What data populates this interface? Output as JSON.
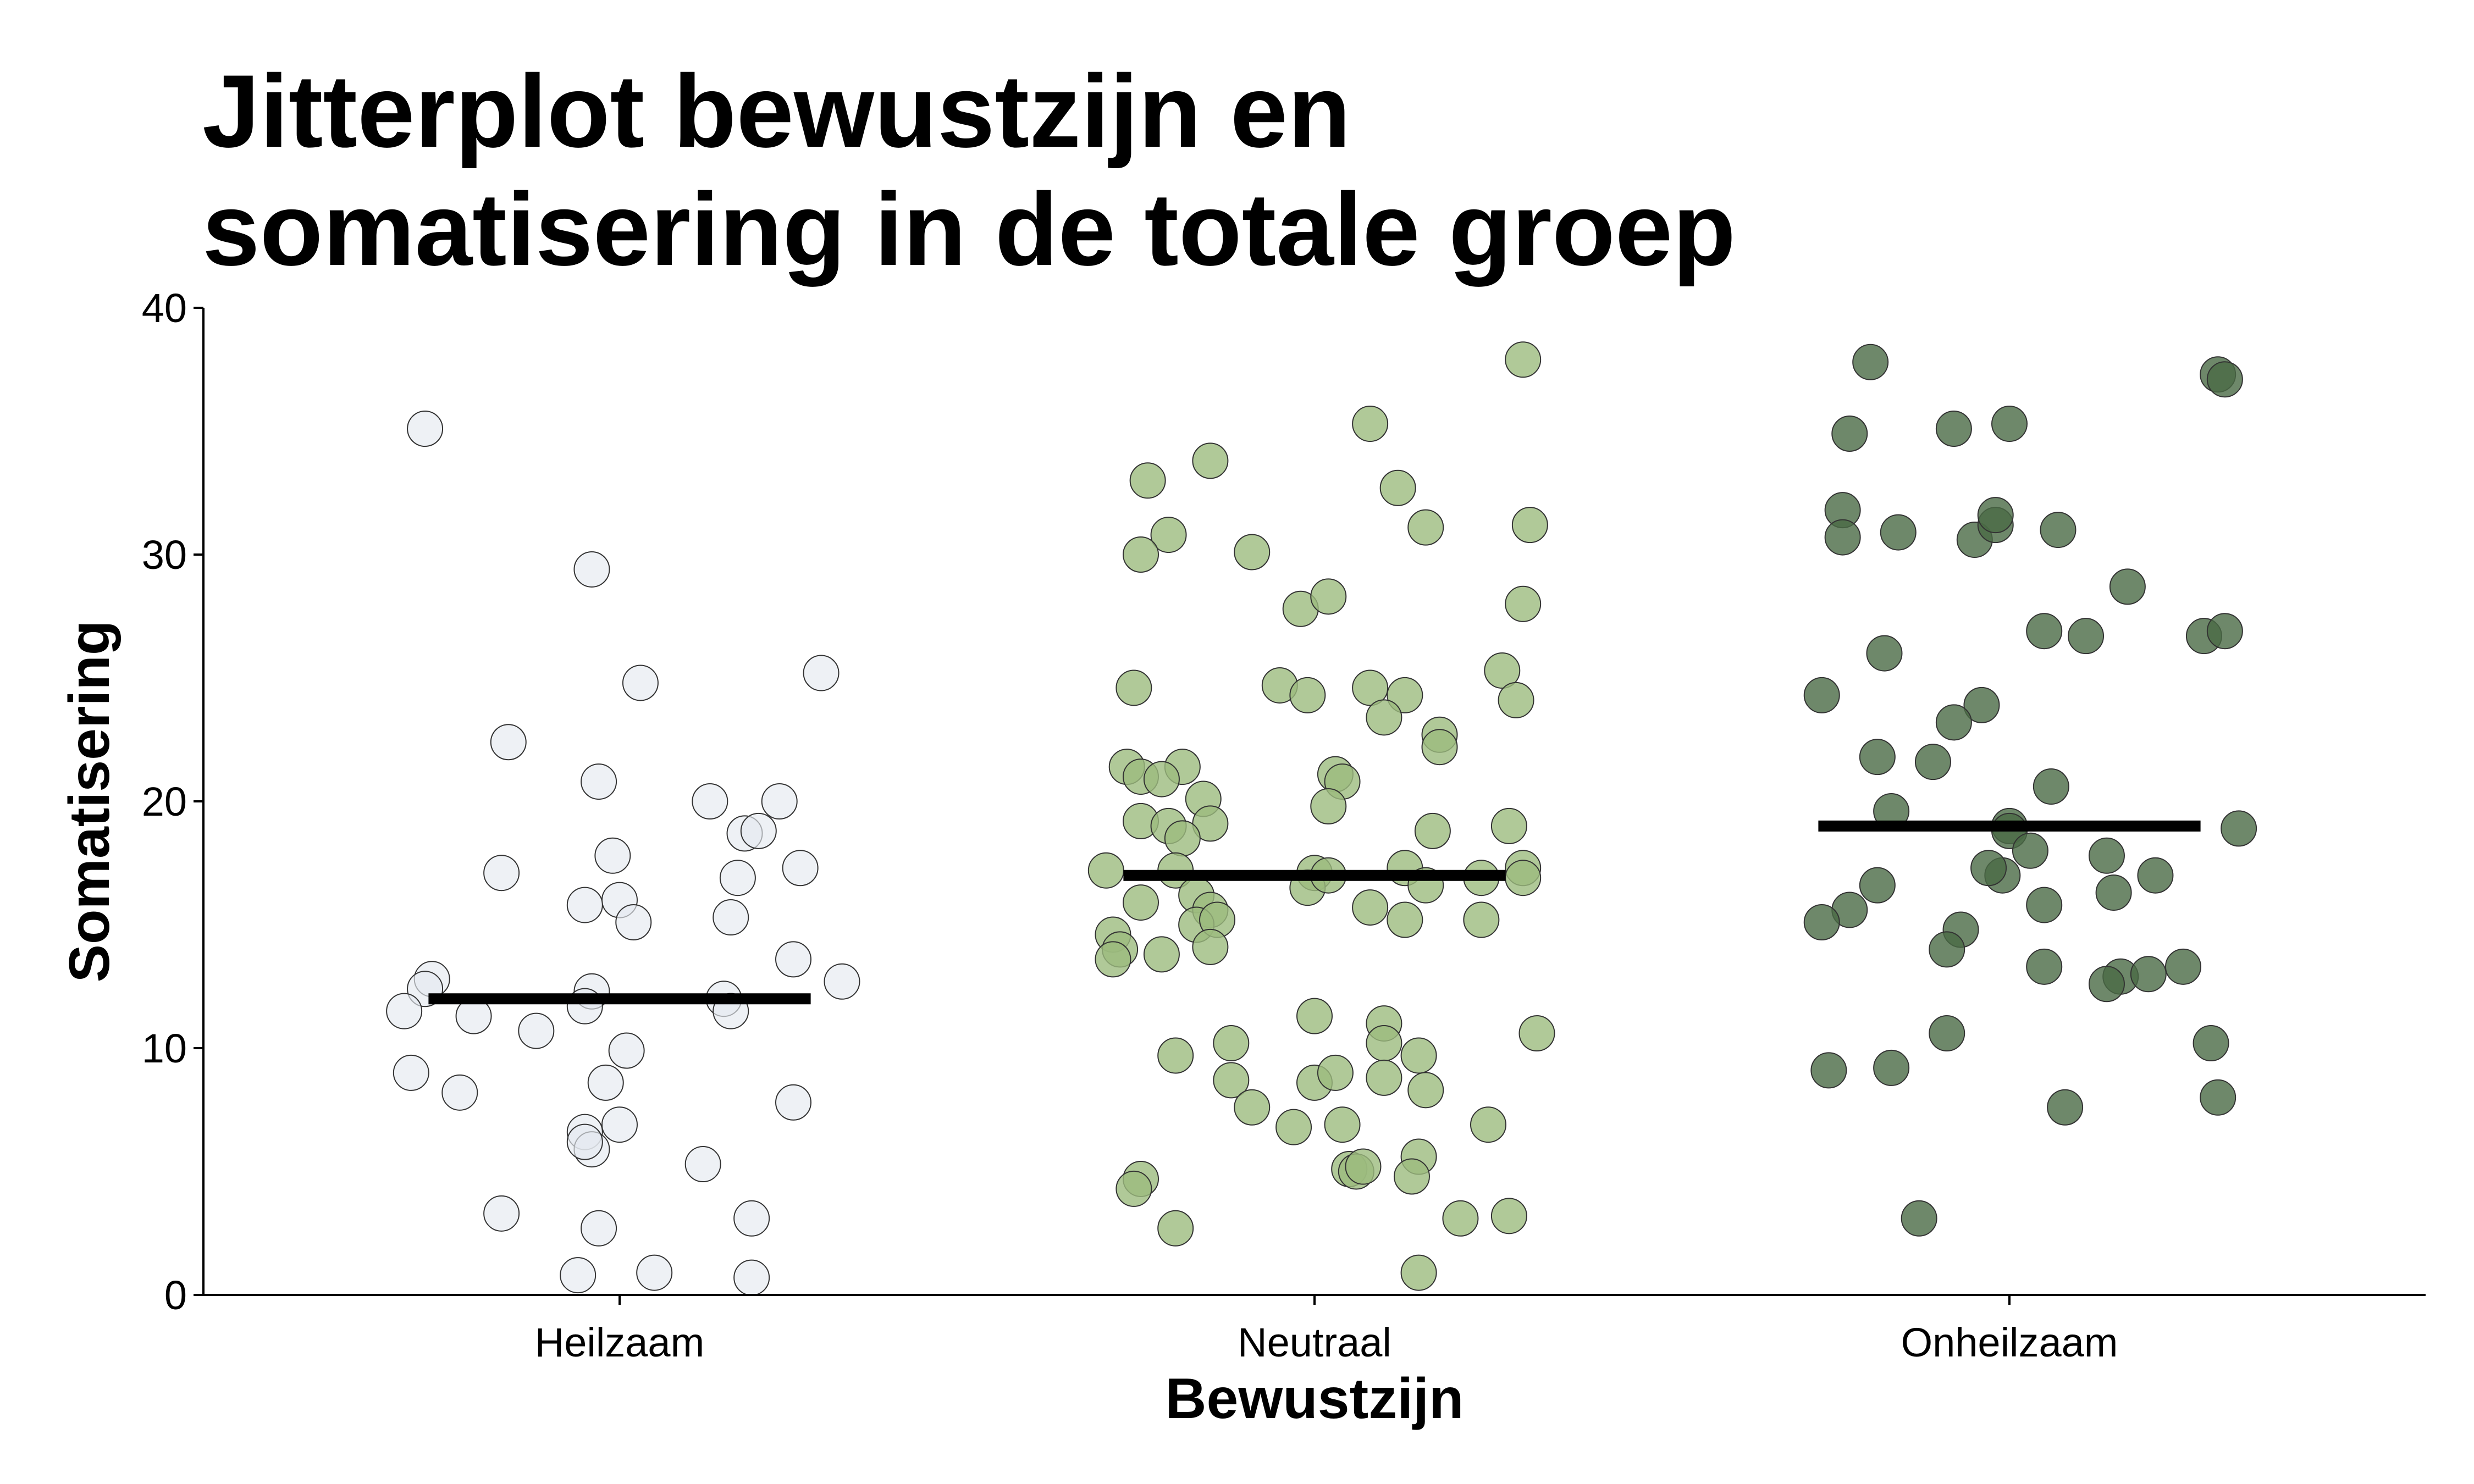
{
  "chart_data": {
    "type": "scatter",
    "title_lines": [
      "Jitterplot bewustzijn en",
      "somatisering in de totale groep"
    ],
    "xlabel": "Bewustzijn",
    "ylabel": "Somatisering",
    "categories": [
      "Heilzaam",
      "Neutraal",
      "Onheilzaam"
    ],
    "ylim": [
      0,
      40
    ],
    "yticks": [
      "0",
      "10",
      "20",
      "30",
      "40"
    ],
    "grid": false,
    "legend": "none",
    "series": [
      {
        "category": "Heilzaam",
        "color": "#e5e9f0",
        "mean": 12,
        "points": [
          [
            -0.28,
            35.1
          ],
          [
            -0.04,
            29.4
          ],
          [
            0.03,
            24.8
          ],
          [
            0.29,
            25.2
          ],
          [
            -0.16,
            22.4
          ],
          [
            -0.03,
            20.8
          ],
          [
            0.13,
            20.0
          ],
          [
            0.23,
            20.0
          ],
          [
            0.18,
            18.7
          ],
          [
            0.2,
            18.8
          ],
          [
            -0.17,
            17.1
          ],
          [
            -0.01,
            17.8
          ],
          [
            0.26,
            17.3
          ],
          [
            0.17,
            16.9
          ],
          [
            0.0,
            16.0
          ],
          [
            -0.05,
            15.8
          ],
          [
            0.02,
            15.1
          ],
          [
            0.16,
            15.3
          ],
          [
            0.25,
            13.6
          ],
          [
            -0.27,
            12.8
          ],
          [
            -0.28,
            12.4
          ],
          [
            0.32,
            12.7
          ],
          [
            -0.31,
            11.5
          ],
          [
            -0.21,
            11.3
          ],
          [
            -0.04,
            12.3
          ],
          [
            -0.05,
            11.7
          ],
          [
            0.15,
            12.0
          ],
          [
            0.16,
            11.5
          ],
          [
            -0.12,
            10.7
          ],
          [
            0.01,
            9.9
          ],
          [
            -0.3,
            9.0
          ],
          [
            -0.23,
            8.2
          ],
          [
            -0.02,
            8.6
          ],
          [
            0.25,
            7.8
          ],
          [
            -0.05,
            6.6
          ],
          [
            0.0,
            6.9
          ],
          [
            -0.04,
            5.9
          ],
          [
            -0.05,
            6.2
          ],
          [
            0.12,
            5.3
          ],
          [
            -0.17,
            3.3
          ],
          [
            -0.03,
            2.7
          ],
          [
            0.19,
            3.1
          ],
          [
            -0.06,
            0.8
          ],
          [
            0.05,
            0.9
          ],
          [
            0.19,
            0.7
          ]
        ]
      },
      {
        "category": "Neutraal",
        "color": "#9cbc7e",
        "mean": 17,
        "points": [
          [
            0.3,
            37.9
          ],
          [
            0.08,
            35.3
          ],
          [
            -0.15,
            33.8
          ],
          [
            -0.24,
            33.0
          ],
          [
            0.12,
            32.7
          ],
          [
            0.16,
            31.1
          ],
          [
            0.31,
            31.2
          ],
          [
            -0.21,
            30.8
          ],
          [
            -0.25,
            30.0
          ],
          [
            -0.09,
            30.1
          ],
          [
            -0.02,
            27.8
          ],
          [
            0.02,
            28.3
          ],
          [
            0.3,
            28.0
          ],
          [
            -0.05,
            24.7
          ],
          [
            -0.01,
            24.3
          ],
          [
            -0.26,
            24.6
          ],
          [
            0.08,
            24.6
          ],
          [
            0.13,
            24.3
          ],
          [
            0.27,
            25.3
          ],
          [
            0.29,
            24.1
          ],
          [
            0.1,
            23.4
          ],
          [
            0.18,
            22.7
          ],
          [
            0.18,
            22.2
          ],
          [
            -0.27,
            21.4
          ],
          [
            -0.25,
            21.0
          ],
          [
            -0.19,
            21.4
          ],
          [
            -0.22,
            20.9
          ],
          [
            0.03,
            21.1
          ],
          [
            0.04,
            20.8
          ],
          [
            -0.16,
            20.1
          ],
          [
            0.02,
            19.8
          ],
          [
            -0.25,
            19.2
          ],
          [
            -0.21,
            19.0
          ],
          [
            -0.15,
            19.1
          ],
          [
            0.17,
            18.8
          ],
          [
            0.28,
            19.0
          ],
          [
            -0.19,
            18.5
          ],
          [
            -0.3,
            17.2
          ],
          [
            -0.2,
            17.2
          ],
          [
            0.0,
            17.1
          ],
          [
            0.13,
            17.3
          ],
          [
            0.24,
            16.9
          ],
          [
            0.3,
            17.3
          ],
          [
            0.3,
            16.9
          ],
          [
            -0.01,
            16.5
          ],
          [
            -0.17,
            16.2
          ],
          [
            0.16,
            16.6
          ],
          [
            0.02,
            17.0
          ],
          [
            -0.25,
            15.9
          ],
          [
            -0.15,
            15.6
          ],
          [
            0.08,
            15.7
          ],
          [
            -0.17,
            15.0
          ],
          [
            -0.14,
            15.2
          ],
          [
            0.13,
            15.2
          ],
          [
            0.24,
            15.2
          ],
          [
            -0.29,
            14.6
          ],
          [
            -0.28,
            14.0
          ],
          [
            -0.29,
            13.6
          ],
          [
            -0.22,
            13.8
          ],
          [
            -0.15,
            14.1
          ],
          [
            0.0,
            11.3
          ],
          [
            0.1,
            11.0
          ],
          [
            0.15,
            9.7
          ],
          [
            0.1,
            10.2
          ],
          [
            0.32,
            10.6
          ],
          [
            -0.2,
            9.7
          ],
          [
            -0.12,
            10.2
          ],
          [
            -0.12,
            8.7
          ],
          [
            0.0,
            8.6
          ],
          [
            0.03,
            9.0
          ],
          [
            0.1,
            8.8
          ],
          [
            0.16,
            8.3
          ],
          [
            -0.09,
            7.6
          ],
          [
            -0.03,
            6.8
          ],
          [
            0.04,
            6.9
          ],
          [
            0.25,
            6.9
          ],
          [
            0.05,
            5.1
          ],
          [
            0.06,
            5.0
          ],
          [
            0.07,
            5.2
          ],
          [
            0.15,
            5.6
          ],
          [
            0.14,
            4.8
          ],
          [
            -0.25,
            4.7
          ],
          [
            -0.26,
            4.3
          ],
          [
            -0.2,
            2.7
          ],
          [
            0.21,
            3.1
          ],
          [
            0.28,
            3.2
          ],
          [
            0.15,
            0.9
          ]
        ]
      },
      {
        "category": "Onheilzaam",
        "color": "#4a6a45",
        "mean": 19,
        "points": [
          [
            -0.2,
            37.8
          ],
          [
            0.3,
            37.3
          ],
          [
            0.31,
            37.1
          ],
          [
            -0.23,
            34.9
          ],
          [
            -0.08,
            35.1
          ],
          [
            0.0,
            35.3
          ],
          [
            -0.24,
            31.8
          ],
          [
            -0.24,
            30.7
          ],
          [
            -0.16,
            30.9
          ],
          [
            -0.05,
            30.6
          ],
          [
            -0.02,
            31.2
          ],
          [
            -0.02,
            31.6
          ],
          [
            0.07,
            31.0
          ],
          [
            0.17,
            28.7
          ],
          [
            0.05,
            26.9
          ],
          [
            0.11,
            26.7
          ],
          [
            0.28,
            26.7
          ],
          [
            0.31,
            26.9
          ],
          [
            -0.18,
            26.0
          ],
          [
            -0.27,
            24.3
          ],
          [
            -0.04,
            23.9
          ],
          [
            -0.08,
            23.2
          ],
          [
            -0.19,
            21.8
          ],
          [
            -0.11,
            21.6
          ],
          [
            0.06,
            20.6
          ],
          [
            -0.17,
            19.6
          ],
          [
            0.0,
            19.0
          ],
          [
            0.0,
            18.8
          ],
          [
            0.03,
            18.0
          ],
          [
            0.14,
            17.8
          ],
          [
            0.21,
            17.0
          ],
          [
            -0.01,
            17.0
          ],
          [
            -0.03,
            17.3
          ],
          [
            -0.19,
            16.6
          ],
          [
            -0.23,
            15.6
          ],
          [
            0.05,
            15.8
          ],
          [
            0.15,
            16.3
          ],
          [
            -0.27,
            15.1
          ],
          [
            -0.07,
            14.8
          ],
          [
            -0.09,
            14.0
          ],
          [
            0.05,
            13.3
          ],
          [
            0.16,
            12.9
          ],
          [
            0.2,
            13.0
          ],
          [
            0.25,
            13.3
          ],
          [
            0.14,
            12.6
          ],
          [
            -0.09,
            10.6
          ],
          [
            0.29,
            10.2
          ],
          [
            -0.26,
            9.1
          ],
          [
            -0.17,
            9.2
          ],
          [
            0.08,
            7.6
          ],
          [
            0.3,
            8.0
          ],
          [
            -0.13,
            3.1
          ],
          [
            0.33,
            18.9
          ]
        ]
      }
    ]
  }
}
